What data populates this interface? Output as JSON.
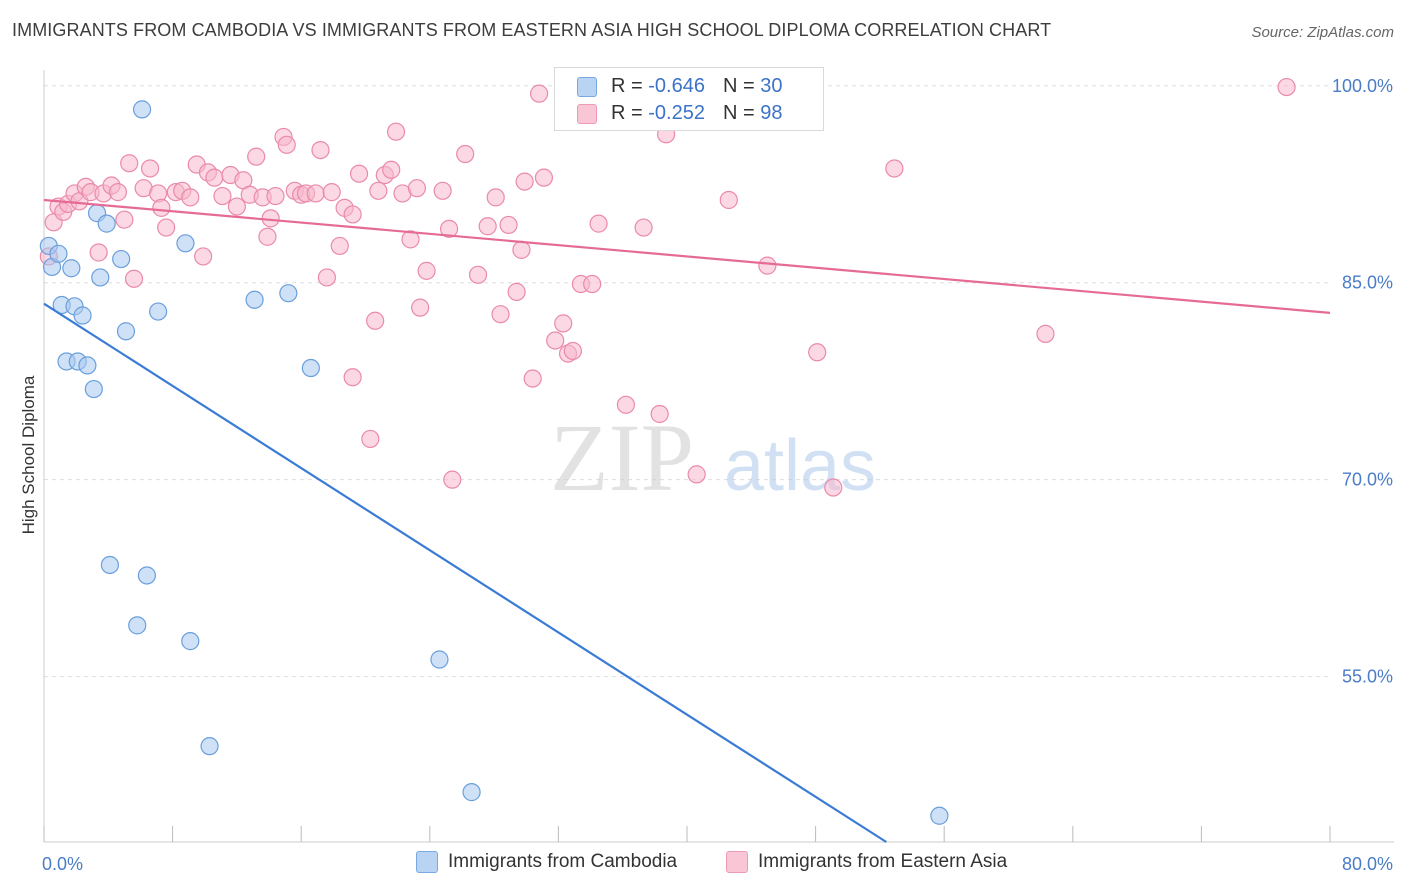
{
  "title": "IMMIGRANTS FROM CAMBODIA VS IMMIGRANTS FROM EASTERN ASIA HIGH SCHOOL DIPLOMA CORRELATION CHART",
  "source": "Source: ZipAtlas.com",
  "watermark": {
    "zip": "ZIP",
    "atlas": "atlas"
  },
  "legend": {
    "r_label": "R =",
    "n_label": "N =",
    "rows": [
      {
        "r": "-0.646",
        "n": "30"
      },
      {
        "r": "-0.252",
        "n": "98"
      }
    ]
  },
  "colors": {
    "cambodia_fill": "#a8c8f0",
    "cambodia_stroke": "#6a9fdc",
    "cambodia_line": "#3a7bd5",
    "eastasia_fill": "#f7b8cc",
    "eastasia_stroke": "#ea8aab",
    "eastasia_line": "#e56b96",
    "tick_text": "#4a7cc7",
    "grid": "#dddddd"
  },
  "chart_data": {
    "type": "scatter",
    "title": "IMMIGRANTS FROM CAMBODIA VS IMMIGRANTS FROM EASTERN ASIA HIGH SCHOOL DIPLOMA CORRELATION CHART",
    "xlabel": "",
    "ylabel": "High School Diploma",
    "xlim": [
      0,
      80
    ],
    "ylim": [
      42.4,
      101.2
    ],
    "x_tick_labels": [
      "0.0%",
      "80.0%"
    ],
    "y_ticks": [
      55,
      70,
      85,
      100
    ],
    "y_tick_labels": [
      "55.0%",
      "70.0%",
      "85.0%",
      "100.0%"
    ],
    "grid": true,
    "series": [
      {
        "name": "Immigrants from Cambodia",
        "r": -0.646,
        "n": 30,
        "trend": {
          "x": [
            0,
            52.4
          ],
          "y": [
            83.4,
            42.4
          ]
        },
        "points": [
          {
            "x": 0.3,
            "y": 87.8
          },
          {
            "x": 0.5,
            "y": 86.2
          },
          {
            "x": 0.9,
            "y": 87.2
          },
          {
            "x": 1.1,
            "y": 83.3
          },
          {
            "x": 1.4,
            "y": 79.0
          },
          {
            "x": 1.7,
            "y": 86.1
          },
          {
            "x": 1.9,
            "y": 83.2
          },
          {
            "x": 2.1,
            "y": 79.0
          },
          {
            "x": 2.4,
            "y": 82.5
          },
          {
            "x": 2.7,
            "y": 78.7
          },
          {
            "x": 3.1,
            "y": 76.9
          },
          {
            "x": 3.3,
            "y": 90.3
          },
          {
            "x": 3.5,
            "y": 85.4
          },
          {
            "x": 3.9,
            "y": 89.5
          },
          {
            "x": 4.1,
            "y": 63.5
          },
          {
            "x": 4.8,
            "y": 86.8
          },
          {
            "x": 5.1,
            "y": 81.3
          },
          {
            "x": 5.8,
            "y": 58.9
          },
          {
            "x": 6.1,
            "y": 98.2
          },
          {
            "x": 6.4,
            "y": 62.7
          },
          {
            "x": 7.1,
            "y": 82.8
          },
          {
            "x": 8.8,
            "y": 88.0
          },
          {
            "x": 9.1,
            "y": 57.7
          },
          {
            "x": 10.3,
            "y": 49.7
          },
          {
            "x": 13.1,
            "y": 83.7
          },
          {
            "x": 15.2,
            "y": 84.2
          },
          {
            "x": 16.6,
            "y": 78.5
          },
          {
            "x": 24.6,
            "y": 56.3
          },
          {
            "x": 26.6,
            "y": 46.2
          },
          {
            "x": 55.7,
            "y": 44.4
          }
        ]
      },
      {
        "name": "Immigrants from Eastern Asia",
        "r": -0.252,
        "n": 98,
        "trend": {
          "x": [
            0,
            80
          ],
          "y": [
            91.3,
            82.7
          ]
        },
        "points": [
          {
            "x": 0.3,
            "y": 87.0
          },
          {
            "x": 0.6,
            "y": 89.6
          },
          {
            "x": 0.9,
            "y": 90.8
          },
          {
            "x": 1.2,
            "y": 90.4
          },
          {
            "x": 1.5,
            "y": 91.0
          },
          {
            "x": 1.9,
            "y": 91.8
          },
          {
            "x": 2.2,
            "y": 91.2
          },
          {
            "x": 2.6,
            "y": 92.3
          },
          {
            "x": 2.9,
            "y": 91.9
          },
          {
            "x": 3.4,
            "y": 87.3
          },
          {
            "x": 3.7,
            "y": 91.8
          },
          {
            "x": 4.2,
            "y": 92.4
          },
          {
            "x": 4.6,
            "y": 91.9
          },
          {
            "x": 5.0,
            "y": 89.8
          },
          {
            "x": 5.3,
            "y": 94.1
          },
          {
            "x": 5.6,
            "y": 85.3
          },
          {
            "x": 6.2,
            "y": 92.2
          },
          {
            "x": 6.6,
            "y": 93.7
          },
          {
            "x": 7.1,
            "y": 91.8
          },
          {
            "x": 7.3,
            "y": 90.7
          },
          {
            "x": 7.6,
            "y": 89.2
          },
          {
            "x": 8.2,
            "y": 91.9
          },
          {
            "x": 8.6,
            "y": 92.0
          },
          {
            "x": 9.1,
            "y": 91.5
          },
          {
            "x": 9.5,
            "y": 94.0
          },
          {
            "x": 9.9,
            "y": 87.0
          },
          {
            "x": 10.2,
            "y": 93.4
          },
          {
            "x": 10.6,
            "y": 93.0
          },
          {
            "x": 11.1,
            "y": 91.6
          },
          {
            "x": 11.6,
            "y": 93.2
          },
          {
            "x": 12.0,
            "y": 90.8
          },
          {
            "x": 12.4,
            "y": 92.8
          },
          {
            "x": 12.8,
            "y": 91.7
          },
          {
            "x": 13.2,
            "y": 94.6
          },
          {
            "x": 13.6,
            "y": 91.5
          },
          {
            "x": 13.9,
            "y": 88.5
          },
          {
            "x": 14.1,
            "y": 89.9
          },
          {
            "x": 14.4,
            "y": 91.6
          },
          {
            "x": 14.9,
            "y": 96.1
          },
          {
            "x": 15.1,
            "y": 95.5
          },
          {
            "x": 15.6,
            "y": 92.0
          },
          {
            "x": 16.0,
            "y": 91.7
          },
          {
            "x": 16.3,
            "y": 91.8
          },
          {
            "x": 16.9,
            "y": 91.8
          },
          {
            "x": 17.2,
            "y": 95.1
          },
          {
            "x": 17.6,
            "y": 85.4
          },
          {
            "x": 17.9,
            "y": 91.9
          },
          {
            "x": 18.4,
            "y": 87.8
          },
          {
            "x": 18.7,
            "y": 90.7
          },
          {
            "x": 19.2,
            "y": 90.2
          },
          {
            "x": 19.6,
            "y": 93.3
          },
          {
            "x": 19.2,
            "y": 77.8
          },
          {
            "x": 20.3,
            "y": 73.1
          },
          {
            "x": 20.6,
            "y": 82.1
          },
          {
            "x": 20.8,
            "y": 92.0
          },
          {
            "x": 21.2,
            "y": 93.2
          },
          {
            "x": 21.6,
            "y": 93.6
          },
          {
            "x": 21.9,
            "y": 96.5
          },
          {
            "x": 22.3,
            "y": 91.8
          },
          {
            "x": 22.8,
            "y": 88.3
          },
          {
            "x": 23.2,
            "y": 92.2
          },
          {
            "x": 23.4,
            "y": 83.1
          },
          {
            "x": 23.8,
            "y": 85.9
          },
          {
            "x": 24.8,
            "y": 92.0
          },
          {
            "x": 25.2,
            "y": 89.1
          },
          {
            "x": 25.4,
            "y": 70.0
          },
          {
            "x": 26.2,
            "y": 94.8
          },
          {
            "x": 27.0,
            "y": 85.6
          },
          {
            "x": 27.6,
            "y": 89.3
          },
          {
            "x": 28.1,
            "y": 91.5
          },
          {
            "x": 28.4,
            "y": 82.6
          },
          {
            "x": 28.9,
            "y": 89.4
          },
          {
            "x": 29.4,
            "y": 84.3
          },
          {
            "x": 29.7,
            "y": 87.5
          },
          {
            "x": 29.9,
            "y": 92.7
          },
          {
            "x": 30.4,
            "y": 77.7
          },
          {
            "x": 30.8,
            "y": 99.4
          },
          {
            "x": 31.1,
            "y": 93.0
          },
          {
            "x": 31.8,
            "y": 80.6
          },
          {
            "x": 32.3,
            "y": 81.9
          },
          {
            "x": 32.6,
            "y": 79.6
          },
          {
            "x": 32.9,
            "y": 79.8
          },
          {
            "x": 33.4,
            "y": 84.9
          },
          {
            "x": 34.1,
            "y": 84.9
          },
          {
            "x": 34.5,
            "y": 89.5
          },
          {
            "x": 36.2,
            "y": 75.7
          },
          {
            "x": 37.3,
            "y": 89.2
          },
          {
            "x": 38.3,
            "y": 75.0
          },
          {
            "x": 38.7,
            "y": 96.3
          },
          {
            "x": 40.6,
            "y": 70.4
          },
          {
            "x": 42.6,
            "y": 91.3
          },
          {
            "x": 43.1,
            "y": 99.4
          },
          {
            "x": 45.0,
            "y": 86.3
          },
          {
            "x": 48.1,
            "y": 79.7
          },
          {
            "x": 49.1,
            "y": 69.4
          },
          {
            "x": 52.9,
            "y": 93.7
          },
          {
            "x": 62.3,
            "y": 81.1
          },
          {
            "x": 77.3,
            "y": 99.9
          }
        ]
      }
    ],
    "legend": "top-center",
    "bottom_legend": [
      "Immigrants from Cambodia",
      "Immigrants from Eastern Asia"
    ]
  }
}
